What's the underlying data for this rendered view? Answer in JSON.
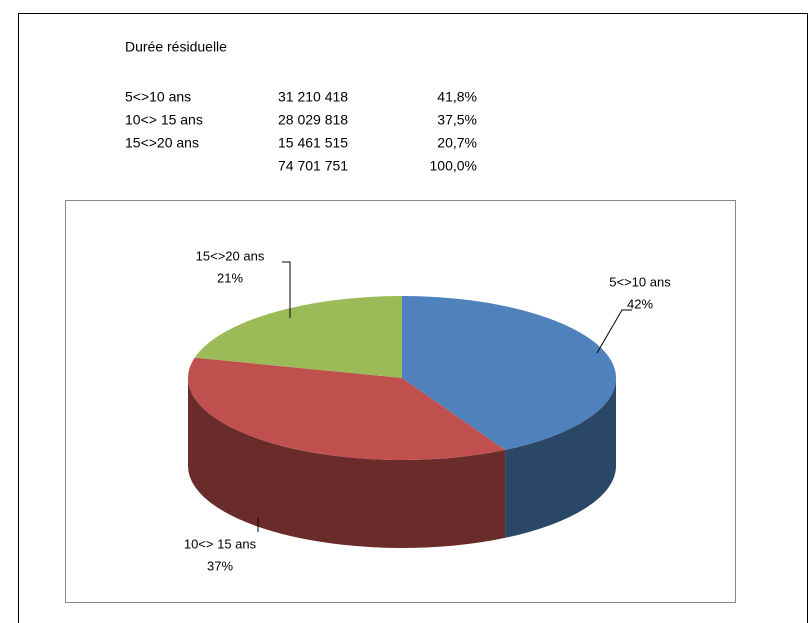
{
  "table": {
    "title": "Durée résiduelle",
    "rows": [
      [
        "5<>10 ans",
        "31 210 418",
        "41,8%"
      ],
      [
        "10<> 15 ans",
        "28 029 818",
        "37,5%"
      ],
      [
        "15<>20 ans",
        "15 461 515",
        "20,7%"
      ]
    ],
    "total": {
      "amount": "74 701 751",
      "share": "100,0%"
    }
  },
  "chart_data": {
    "type": "pie3d",
    "categories": [
      "5<>10 ans",
      "10<> 15 ans",
      "15<>20 ans"
    ],
    "values": [
      42,
      37,
      21
    ],
    "value_labels": [
      "42%",
      "37%",
      "21%"
    ],
    "colors": [
      "#4f81bd",
      "#c0504d",
      "#9bbb59"
    ]
  }
}
